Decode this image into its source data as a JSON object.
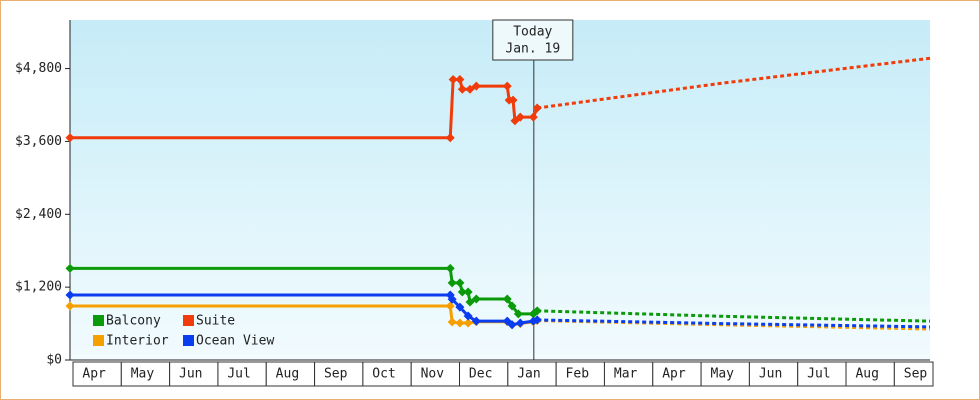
{
  "chart_data": {
    "type": "line",
    "xlim": [
      0,
      17.8
    ],
    "ylim": [
      0,
      5600
    ],
    "yticks": [
      {
        "value": 0,
        "label": "$0"
      },
      {
        "value": 1200,
        "label": "$1,200"
      },
      {
        "value": 2400,
        "label": "$2,400"
      },
      {
        "value": 3600,
        "label": "$3,600"
      },
      {
        "value": 4800,
        "label": "$4,800"
      }
    ],
    "xticks": [
      {
        "value": 0.5,
        "label": "Apr"
      },
      {
        "value": 1.5,
        "label": "May"
      },
      {
        "value": 2.5,
        "label": "Jun"
      },
      {
        "value": 3.5,
        "label": "Jul"
      },
      {
        "value": 4.5,
        "label": "Aug"
      },
      {
        "value": 5.5,
        "label": "Sep"
      },
      {
        "value": 6.5,
        "label": "Oct"
      },
      {
        "value": 7.5,
        "label": "Nov"
      },
      {
        "value": 8.5,
        "label": "Dec"
      },
      {
        "value": 9.5,
        "label": "Jan"
      },
      {
        "value": 10.5,
        "label": "Feb"
      },
      {
        "value": 11.5,
        "label": "Mar"
      },
      {
        "value": 12.5,
        "label": "Apr"
      },
      {
        "value": 13.5,
        "label": "May"
      },
      {
        "value": 14.5,
        "label": "Jun"
      },
      {
        "value": 15.5,
        "label": "Jul"
      },
      {
        "value": 16.5,
        "label": "Aug"
      },
      {
        "value": 17.5,
        "label": "Sep"
      }
    ],
    "annotation": {
      "x": 9.6,
      "lines": [
        "Today",
        "Jan. 19"
      ]
    },
    "series": [
      {
        "name": "Balcony",
        "color": "#0a9a0a",
        "x": [
          0,
          7.87,
          7.91,
          8.07,
          8.12,
          8.24,
          8.28,
          8.41,
          9.05,
          9.15,
          9.28,
          9.59,
          9.67
        ],
        "values": [
          1510,
          1510,
          1270,
          1270,
          1120,
          1120,
          955,
          1005,
          1005,
          890,
          760,
          760,
          810
        ],
        "forecast_x": [
          9.67,
          13.5,
          17.8
        ],
        "forecast_values": [
          810,
          720,
          640
        ]
      },
      {
        "name": "Suite",
        "color": "#f03c0a",
        "x": [
          0,
          7.87,
          7.93,
          8.07,
          8.12,
          8.28,
          8.41,
          9.05,
          9.09,
          9.17,
          9.21,
          9.32,
          9.59,
          9.67
        ],
        "values": [
          3660,
          3660,
          4620,
          4620,
          4460,
          4460,
          4510,
          4510,
          4280,
          4280,
          3940,
          4000,
          4000,
          4150
        ],
        "forecast_x": [
          9.67,
          13.5,
          17.8
        ],
        "forecast_values": [
          4150,
          4560,
          4970
        ]
      },
      {
        "name": "Interior",
        "color": "#f5a000",
        "x": [
          0,
          7.87,
          7.91,
          8.07,
          8.24,
          8.41,
          9.05,
          9.15,
          9.32,
          9.59,
          9.67
        ],
        "values": [
          890,
          890,
          625,
          610,
          610,
          630,
          630,
          580,
          600,
          630,
          650
        ],
        "forecast_x": [
          9.67,
          13.5,
          17.8
        ],
        "forecast_values": [
          650,
          580,
          510
        ]
      },
      {
        "name": "Ocean View",
        "color": "#0a3cf0",
        "x": [
          0,
          7.87,
          7.91,
          8.07,
          8.24,
          8.41,
          9.05,
          9.15,
          9.32,
          9.59,
          9.67
        ],
        "values": [
          1070,
          1070,
          1000,
          870,
          725,
          640,
          640,
          580,
          610,
          640,
          660
        ],
        "forecast_x": [
          9.67,
          13.5,
          17.8
        ],
        "forecast_values": [
          660,
          600,
          545
        ]
      }
    ]
  }
}
